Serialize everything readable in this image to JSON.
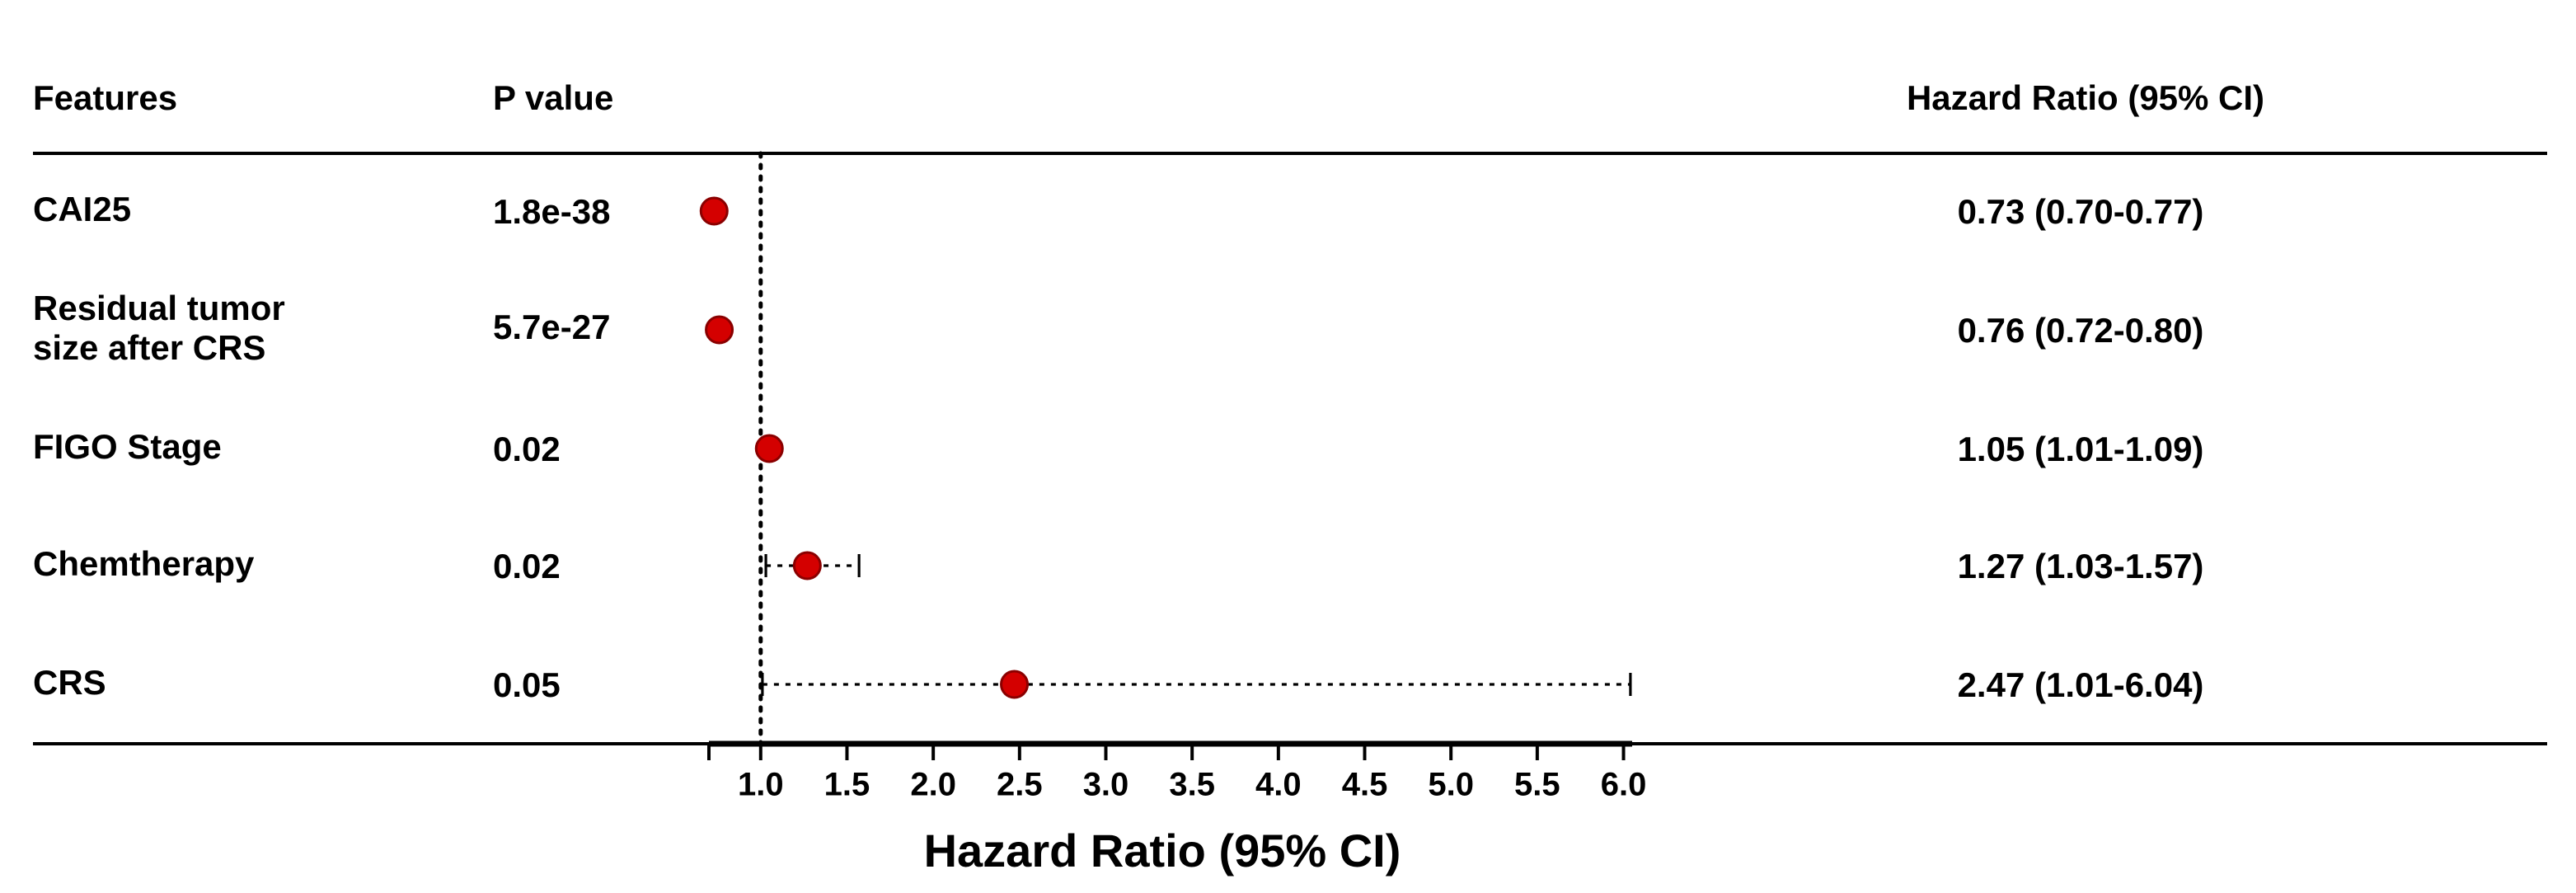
{
  "chart_data": {
    "type": "forest",
    "headers": {
      "feature": "Features",
      "p_value": "P value",
      "hr": "Hazard Ratio (95% CI)"
    },
    "categories": [
      "CAI25",
      "Residual tumor\nsize after CRS",
      "FIGO Stage",
      "Chemtherapy",
      "CRS"
    ],
    "p_values": [
      1.8e-38,
      5.7e-27,
      0.02,
      0.02,
      0.05
    ],
    "values": [
      0.73,
      0.76,
      1.05,
      1.27,
      2.47
    ],
    "lower": [
      0.7,
      0.72,
      1.01,
      1.03,
      1.01
    ],
    "upper": [
      0.77,
      0.8,
      1.09,
      1.57,
      6.04
    ],
    "value_labels": [
      "0.73 (0.70-0.77)",
      "0.76 (0.72-0.80)",
      "1.05 (1.01-1.09)",
      "1.27 (1.03-1.57)",
      "2.47 (1.01-6.04)"
    ],
    "color": "#d40000",
    "reference_line": 1,
    "xlabel": "Hazard Ratio (95% CI)",
    "xlim": [
      0.7,
      6.05
    ],
    "xticks": [
      {
        "value": 1,
        "label": "1.0"
      },
      {
        "value": 1.5,
        "label": "1.5"
      },
      {
        "value": 2,
        "label": "2.0"
      },
      {
        "value": 2.5,
        "label": "2.5"
      },
      {
        "value": 3,
        "label": "3.0"
      },
      {
        "value": 3.5,
        "label": "3.5"
      },
      {
        "value": 4,
        "label": "4.0"
      },
      {
        "value": 4.5,
        "label": "4.5"
      },
      {
        "value": 5,
        "label": "5.0"
      },
      {
        "value": 5.5,
        "label": "5.5"
      },
      {
        "value": 6,
        "label": "6.0"
      }
    ]
  }
}
